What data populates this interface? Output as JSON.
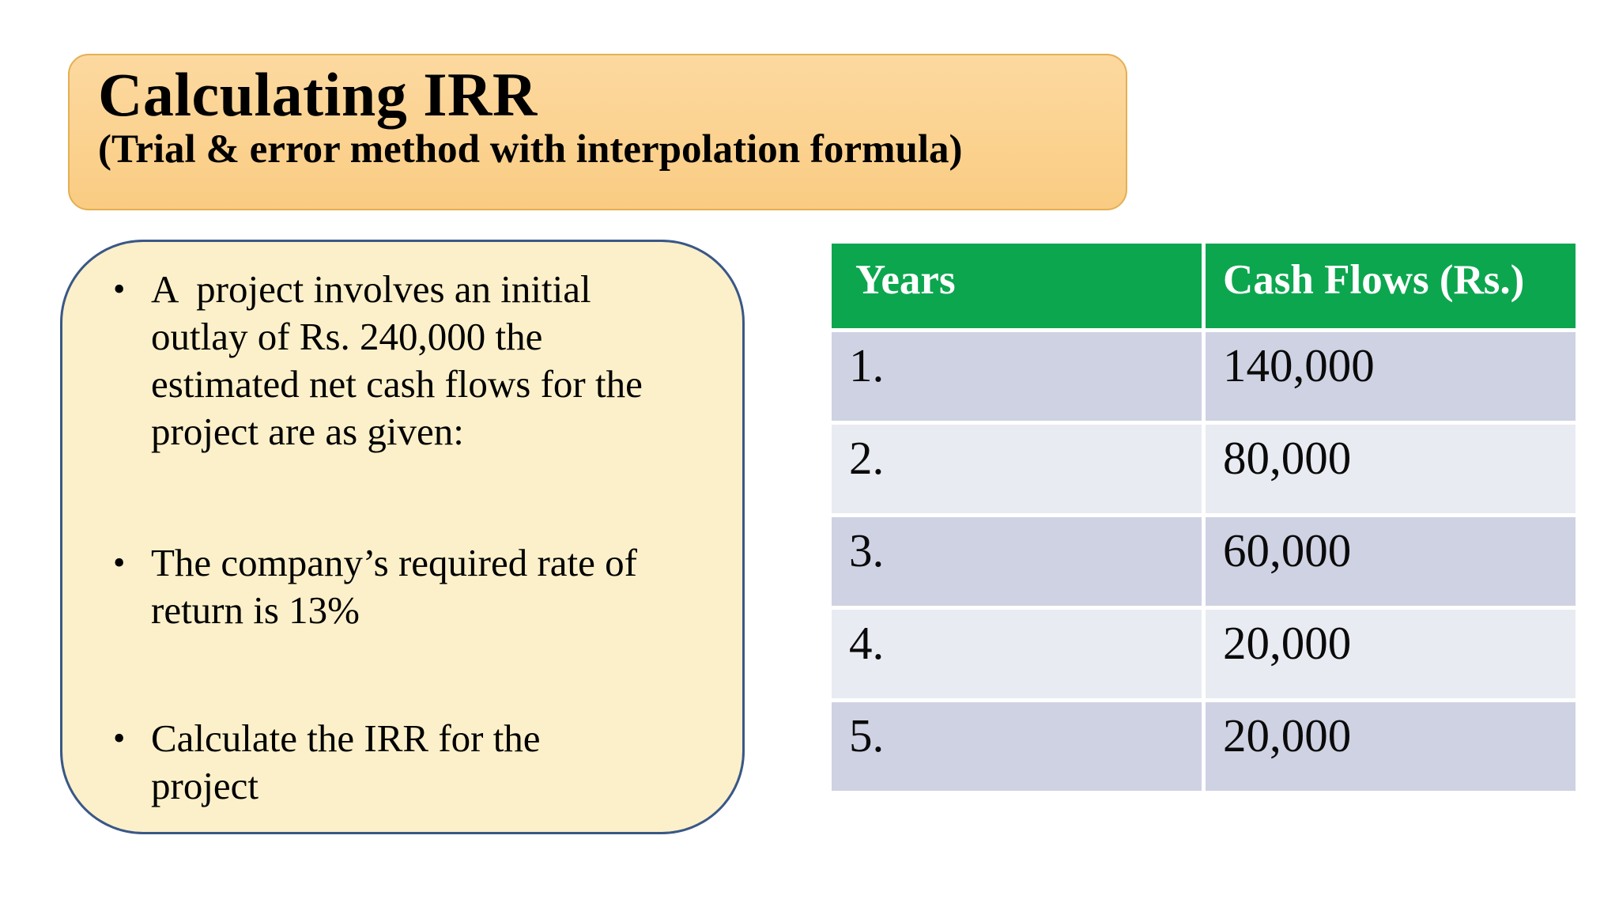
{
  "header": {
    "title": "Calculating IRR",
    "subtitle": "(Trial & error method with interpolation formula)"
  },
  "info_box": {
    "bullet_glyph": "•",
    "bullets": [
      "A  project involves an initial\noutlay of Rs. 240,000 the\nestimated net cash flows for the\nproject are as given:",
      "The company’s required rate of\nreturn is 13%",
      "Calculate the IRR for the\nproject"
    ]
  },
  "table": {
    "columns": [
      "Years",
      "Cash Flows (Rs.)"
    ],
    "rows": [
      {
        "year": "1.",
        "cash_flow": "140,000"
      },
      {
        "year": "2.",
        "cash_flow": "80,000"
      },
      {
        "year": "3.",
        "cash_flow": "60,000"
      },
      {
        "year": "4.",
        "cash_flow": "20,000"
      },
      {
        "year": "5.",
        "cash_flow": "20,000"
      }
    ]
  },
  "colors": {
    "banner_fill": "#FACC82",
    "banner_border": "#E5AF52",
    "box_fill": "#FBF0C9",
    "box_border": "#3A5787",
    "table_header_green": "#0CA64E",
    "table_header_text": "#FFFFFF",
    "row_dark": "#CFD2E3",
    "row_light": "#E9EBF2",
    "body_text": "#000000"
  }
}
